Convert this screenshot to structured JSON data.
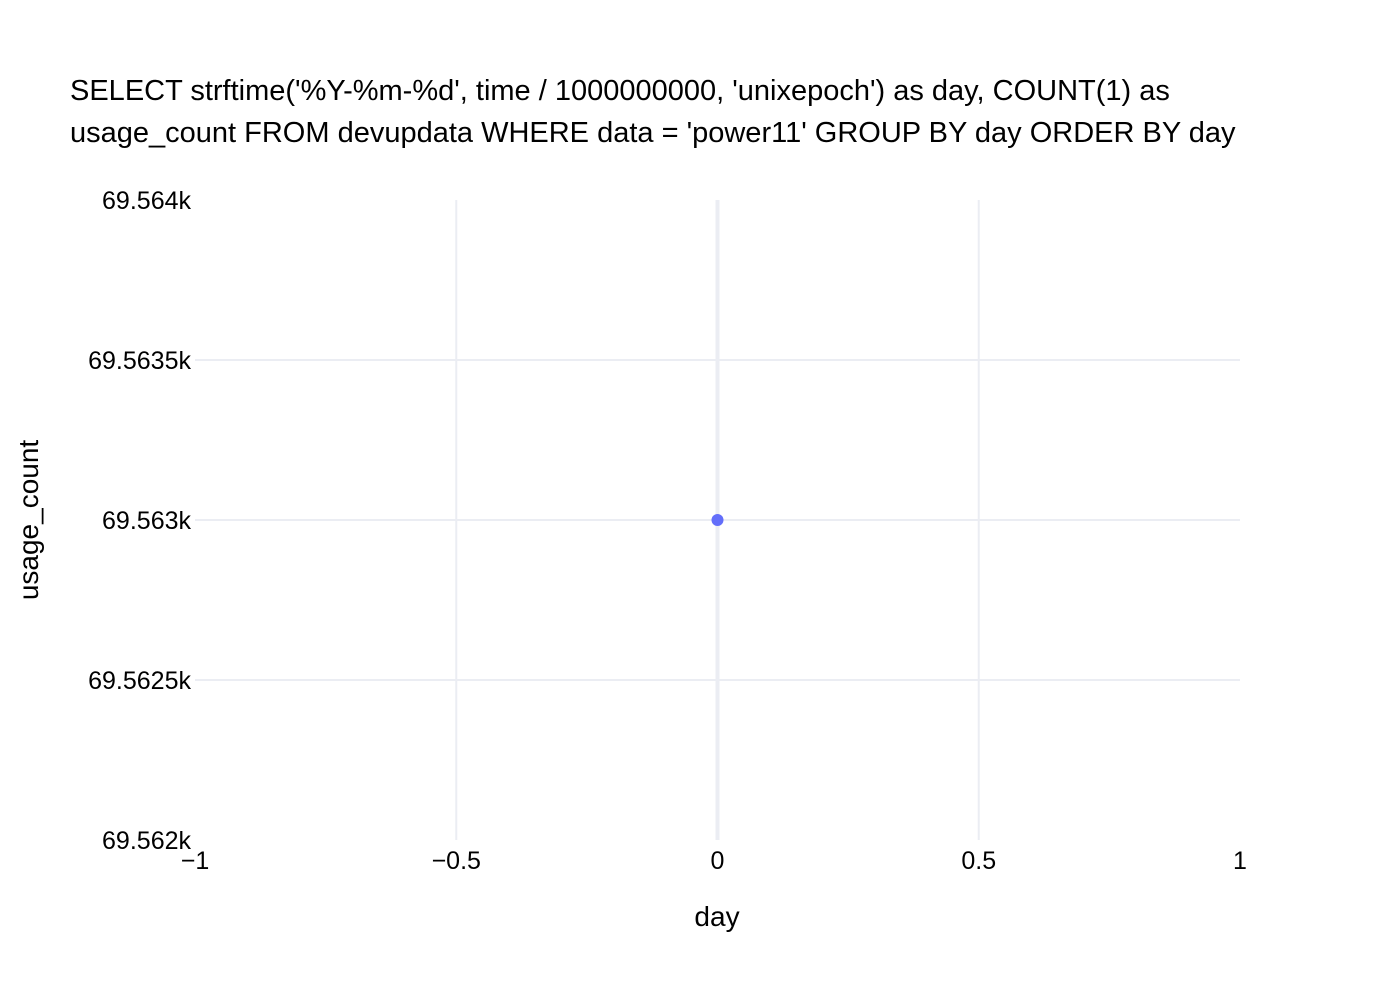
{
  "chart_data": {
    "type": "scatter",
    "title_lines": [
      "SELECT strftime('%Y-%m-%d', time / 1000000000, 'unixepoch') as day, COUNT(1) as",
      "usage_count FROM devupdata WHERE data = 'power11' GROUP BY day ORDER BY day"
    ],
    "xlabel": "day",
    "ylabel": "usage_count",
    "xlim": [
      -1,
      1
    ],
    "ylim": [
      69562,
      69564
    ],
    "x_ticks": [
      -1,
      -0.5,
      0,
      0.5,
      1
    ],
    "x_tick_labels": [
      "−1",
      "−0.5",
      "0",
      "0.5",
      "1"
    ],
    "y_ticks": [
      69562,
      69562.5,
      69563,
      69563.5,
      69564
    ],
    "y_tick_labels": [
      "69.562k",
      "69.5625k",
      "69.563k",
      "69.5635k",
      "69.564k"
    ],
    "grid": true,
    "series": [
      {
        "x": [
          0
        ],
        "y": [
          69563
        ],
        "color": "#636efa"
      }
    ]
  }
}
